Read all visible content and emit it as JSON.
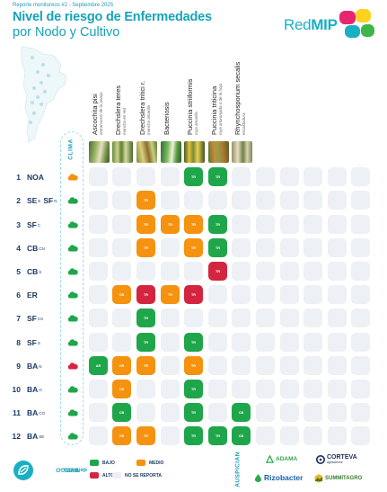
{
  "header": {
    "report": "Reporte monitoreos #2 - Septiembre 2025",
    "title_line1": "Nivel de riesgo de Enfermedades",
    "title_line2": "por Nodo y Cultivo"
  },
  "logo": {
    "text_regular": "Red",
    "text_bold": "MIP",
    "dot_colors": [
      "#e8266f",
      "#ffd21f",
      "#1ab0c4",
      "#3eb54a"
    ]
  },
  "clima_label": "CLIMA",
  "columns": [
    {
      "name": "Ascochita pisi",
      "sub": "antracnosis de la arveja"
    },
    {
      "name": "Drechslera teres",
      "sub": "mancha en red"
    },
    {
      "name": "Drechslera tritici r.",
      "sub": "mancha amarilla"
    },
    {
      "name": "Bacteriosis",
      "sub": ""
    },
    {
      "name": "Puccinia striiformis",
      "sub": "roya amarilla"
    },
    {
      "name": "Puccinia triticina",
      "sub": "roya anaranjada o de la hoja"
    },
    {
      "name": "Rhynchosporium secalis",
      "sub": "escaldadura"
    },
    {
      "name": "",
      "sub": ""
    },
    {
      "name": "",
      "sub": ""
    },
    {
      "name": "",
      "sub": ""
    },
    {
      "name": "",
      "sub": ""
    },
    {
      "name": "",
      "sub": ""
    }
  ],
  "rows": [
    {
      "num": "1",
      "name": "NOA",
      "sup": "",
      "cloud": "#f5920f",
      "cells": [
        [
          "",
          ""
        ],
        [
          "",
          ""
        ],
        [
          "",
          ""
        ],
        [
          "",
          ""
        ],
        [
          "b",
          "TR"
        ],
        [
          "b",
          "TR"
        ],
        [
          "",
          ""
        ],
        [
          "",
          ""
        ],
        [
          "",
          ""
        ],
        [
          "",
          ""
        ],
        [
          "",
          ""
        ],
        [
          "",
          ""
        ]
      ]
    },
    {
      "num": "2",
      "name": "SE",
      "sup": "E",
      "extra": "SF",
      "extra_sup": "N",
      "cloud": "#1fa64a",
      "cells": [
        [
          "",
          ""
        ],
        [
          "",
          ""
        ],
        [
          "m",
          "TR"
        ],
        [
          "",
          ""
        ],
        [
          "",
          ""
        ],
        [
          "",
          ""
        ],
        [
          "",
          ""
        ],
        [
          "",
          ""
        ],
        [
          "",
          ""
        ],
        [
          "",
          ""
        ],
        [
          "",
          ""
        ],
        [
          "",
          ""
        ]
      ]
    },
    {
      "num": "3",
      "name": "SF",
      "sup": "C",
      "cloud": "#1fa64a",
      "cells": [
        [
          "",
          ""
        ],
        [
          "",
          ""
        ],
        [
          "m",
          "TR"
        ],
        [
          "m",
          "TR"
        ],
        [
          "m",
          "TR"
        ],
        [
          "b",
          "TR"
        ],
        [
          "",
          ""
        ],
        [
          "",
          ""
        ],
        [
          "",
          ""
        ],
        [
          "",
          ""
        ],
        [
          "",
          ""
        ],
        [
          "",
          ""
        ]
      ]
    },
    {
      "num": "4",
      "name": "CB",
      "sup": "CN",
      "cloud": "#1fa64a",
      "cells": [
        [
          "",
          ""
        ],
        [
          "",
          ""
        ],
        [
          "m",
          "TR"
        ],
        [
          "",
          ""
        ],
        [
          "m",
          "TR"
        ],
        [
          "b",
          "TR"
        ],
        [
          "",
          ""
        ],
        [
          "",
          ""
        ],
        [
          "",
          ""
        ],
        [
          "",
          ""
        ],
        [
          "",
          ""
        ],
        [
          "",
          ""
        ]
      ]
    },
    {
      "num": "5",
      "name": "CB",
      "sup": "S",
      "cloud": "#1fa64a",
      "cells": [
        [
          "",
          ""
        ],
        [
          "",
          ""
        ],
        [
          "",
          ""
        ],
        [
          "",
          ""
        ],
        [
          "",
          ""
        ],
        [
          "a",
          "TR"
        ],
        [
          "",
          ""
        ],
        [
          "",
          ""
        ],
        [
          "",
          ""
        ],
        [
          "",
          ""
        ],
        [
          "",
          ""
        ],
        [
          "",
          ""
        ]
      ]
    },
    {
      "num": "6",
      "name": "ER",
      "sup": "",
      "cloud": "#1fa64a",
      "cells": [
        [
          "",
          ""
        ],
        [
          "m",
          "CB"
        ],
        [
          "a",
          "TR"
        ],
        [
          "m",
          "TR"
        ],
        [
          "a",
          "TR"
        ],
        [
          "",
          ""
        ],
        [
          "",
          ""
        ],
        [
          "",
          ""
        ],
        [
          "",
          ""
        ],
        [
          "",
          ""
        ],
        [
          "",
          ""
        ],
        [
          "",
          ""
        ]
      ]
    },
    {
      "num": "7",
      "name": "SF",
      "sup": "CS",
      "cloud": "#1fa64a",
      "cells": [
        [
          "",
          ""
        ],
        [
          "",
          ""
        ],
        [
          "b",
          "TR"
        ],
        [
          "",
          ""
        ],
        [
          "",
          ""
        ],
        [
          "",
          ""
        ],
        [
          "",
          ""
        ],
        [
          "",
          ""
        ],
        [
          "",
          ""
        ],
        [
          "",
          ""
        ],
        [
          "",
          ""
        ],
        [
          "",
          ""
        ]
      ]
    },
    {
      "num": "8",
      "name": "SF",
      "sup": "S",
      "cloud": "#1fa64a",
      "cells": [
        [
          "",
          ""
        ],
        [
          "",
          ""
        ],
        [
          "b",
          "TR"
        ],
        [
          "",
          ""
        ],
        [
          "b",
          "TR"
        ],
        [
          "",
          ""
        ],
        [
          "",
          ""
        ],
        [
          "",
          ""
        ],
        [
          "",
          ""
        ],
        [
          "",
          ""
        ],
        [
          "",
          ""
        ],
        [
          "",
          ""
        ]
      ]
    },
    {
      "num": "9",
      "name": "BA",
      "sup": "N",
      "cloud": "#d3253f",
      "cells": [
        [
          "b",
          "AR"
        ],
        [
          "m",
          "CB"
        ],
        [
          "m",
          "TR"
        ],
        [
          "",
          ""
        ],
        [
          "m",
          "TR"
        ],
        [
          "",
          ""
        ],
        [
          "",
          ""
        ],
        [
          "",
          ""
        ],
        [
          "",
          ""
        ],
        [
          "",
          ""
        ],
        [
          "",
          ""
        ],
        [
          "",
          ""
        ]
      ]
    },
    {
      "num": "10",
      "name": "BA",
      "sup": "O",
      "cloud": "#1fa64a",
      "cells": [
        [
          "",
          ""
        ],
        [
          "m",
          "CB"
        ],
        [
          "",
          ""
        ],
        [
          "",
          ""
        ],
        [
          "b",
          "TR"
        ],
        [
          "",
          ""
        ],
        [
          "",
          ""
        ],
        [
          "",
          ""
        ],
        [
          "",
          ""
        ],
        [
          "",
          ""
        ],
        [
          "",
          ""
        ],
        [
          "",
          ""
        ]
      ]
    },
    {
      "num": "11",
      "name": "BA",
      "sup": "CO",
      "cloud": "#1fa64a",
      "cells": [
        [
          "",
          ""
        ],
        [
          "b",
          "CB"
        ],
        [
          "",
          ""
        ],
        [
          "",
          ""
        ],
        [
          "b",
          "TR"
        ],
        [
          "",
          ""
        ],
        [
          "b",
          "CB"
        ],
        [
          "",
          ""
        ],
        [
          "",
          ""
        ],
        [
          "",
          ""
        ],
        [
          "",
          ""
        ],
        [
          "",
          ""
        ]
      ]
    },
    {
      "num": "12",
      "name": "BA",
      "sup": "SE",
      "cloud": "#1fa64a",
      "cells": [
        [
          "",
          ""
        ],
        [
          "m",
          "CB"
        ],
        [
          "m",
          "TR"
        ],
        [
          "",
          ""
        ],
        [
          "b",
          "TR"
        ],
        [
          "b",
          "TR"
        ],
        [
          "b",
          "CB"
        ],
        [
          "",
          ""
        ],
        [
          "",
          ""
        ],
        [
          "",
          ""
        ],
        [
          "",
          ""
        ],
        [
          "",
          ""
        ]
      ]
    }
  ],
  "legend": {
    "title_line1": "NIVEL",
    "title_line2": "de RIESGO",
    "items": [
      {
        "label": "BAJO",
        "color": "#1fa64a"
      },
      {
        "label": "MEDIO",
        "color": "#f5920f"
      },
      {
        "label": "ALTO",
        "color": "#d3253f"
      },
      {
        "label": "NO SE REPORTA",
        "color": "#edf0f4"
      }
    ]
  },
  "sponsors": {
    "title": "AUSPICIAN",
    "items": [
      {
        "name": "ADAMA",
        "color": "#2aa84a"
      },
      {
        "name": "CORTEVA",
        "sub": "agriscience",
        "color": "#1b2e55"
      },
      {
        "name": "Rizobacter",
        "color": "#1b5fae"
      },
      {
        "name": "SUMMITAGRO",
        "color": "#3a7d2f"
      }
    ]
  }
}
